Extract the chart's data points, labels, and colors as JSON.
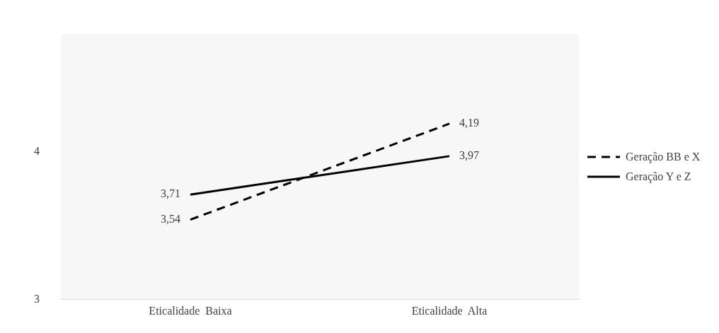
{
  "chart_data": {
    "type": "line",
    "categories": [
      "Eticalidade  Baixa",
      "Eticalidade  Alta"
    ],
    "series": [
      {
        "name": "Geração BB e X",
        "color": "#000000",
        "values": [
          3.54,
          4.19
        ],
        "value_labels": [
          "3,54",
          "4,19"
        ],
        "line_style": "dashed"
      },
      {
        "name": "Geração Y e Z",
        "color": "#000000",
        "values": [
          3.71,
          3.97
        ],
        "value_labels": [
          "3,71",
          "3,97"
        ],
        "line_style": "solid"
      }
    ],
    "ylim": [
      3,
      4.8
    ],
    "yticks": [
      3,
      4
    ],
    "grid": false,
    "legend": "right",
    "marker": "none"
  }
}
